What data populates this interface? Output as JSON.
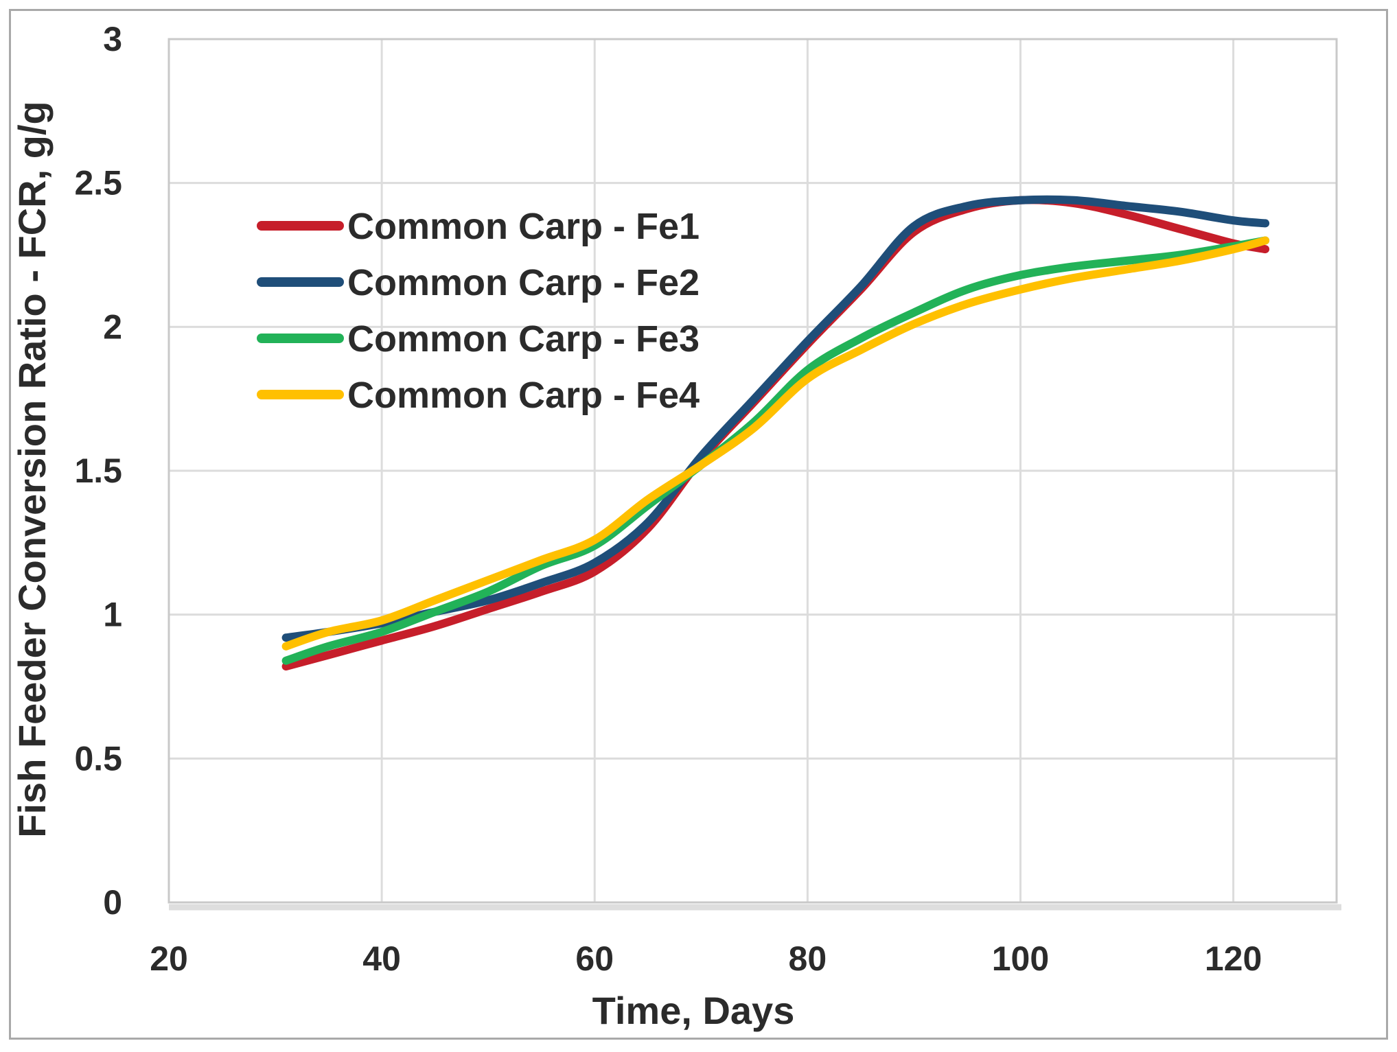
{
  "chart_data": {
    "type": "line",
    "title": "",
    "xlabel": "Time, Days",
    "ylabel": "Fish Feeder Conversion Ratio - FCR, g/g",
    "x": [
      31,
      35,
      40,
      45,
      50,
      55,
      60,
      65,
      70,
      75,
      80,
      85,
      90,
      95,
      100,
      105,
      110,
      115,
      120,
      123
    ],
    "series": [
      {
        "name": "Common Carp - Fe1",
        "color": "#C61E2A",
        "values": [
          0.82,
          0.86,
          0.91,
          0.96,
          1.02,
          1.08,
          1.15,
          1.3,
          1.54,
          1.74,
          1.94,
          2.13,
          2.33,
          2.41,
          2.44,
          2.43,
          2.39,
          2.34,
          2.29,
          2.27
        ]
      },
      {
        "name": "Common Carp - Fe2",
        "color": "#1F4E79",
        "values": [
          0.92,
          0.94,
          0.97,
          1.01,
          1.05,
          1.11,
          1.18,
          1.32,
          1.55,
          1.75,
          1.95,
          2.14,
          2.35,
          2.42,
          2.44,
          2.44,
          2.42,
          2.4,
          2.37,
          2.36
        ]
      },
      {
        "name": "Common Carp - Fe3",
        "color": "#22B258",
        "values": [
          0.84,
          0.89,
          0.94,
          1.01,
          1.08,
          1.17,
          1.24,
          1.38,
          1.52,
          1.67,
          1.85,
          1.96,
          2.05,
          2.13,
          2.18,
          2.21,
          2.23,
          2.25,
          2.28,
          2.3
        ]
      },
      {
        "name": "Common Carp - Fe4",
        "color": "#FFC000",
        "values": [
          0.89,
          0.94,
          0.98,
          1.05,
          1.12,
          1.19,
          1.26,
          1.4,
          1.52,
          1.65,
          1.82,
          1.92,
          2.01,
          2.08,
          2.13,
          2.17,
          2.2,
          2.23,
          2.27,
          2.3
        ]
      }
    ],
    "x_ticks": [
      "20",
      "40",
      "60",
      "80",
      "100",
      "120"
    ],
    "y_ticks": [
      "0",
      "0.5",
      "1",
      "1.5",
      "2",
      "2.5",
      "3"
    ],
    "xlim": [
      20,
      129.7
    ],
    "ylim": [
      0,
      3
    ],
    "grid": true,
    "legend_position": "upper-left-inside"
  },
  "styles": {
    "background": "#FFFFFF",
    "outer_frame_color": "#A9A9A9",
    "plot_border_color": "#C9C9C9",
    "grid_color": "#DCDCDC",
    "axis_shadow_color": "#DEDEDE",
    "text_color": "#2B2B2B"
  }
}
